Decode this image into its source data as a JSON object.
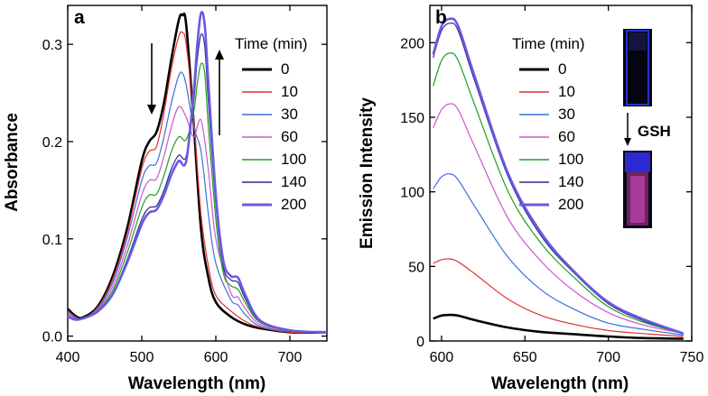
{
  "chart_data": [
    {
      "type": "line",
      "panel_label": "a",
      "xlabel": "Wavelength (nm)",
      "ylabel": "Absorbance",
      "xlim": [
        400,
        750
      ],
      "ylim": [
        -0.005,
        0.34
      ],
      "xticks": [
        "400",
        "500",
        "600",
        "700"
      ],
      "yticks": [
        "0.0",
        "0.1",
        "0.2",
        "0.3"
      ],
      "legend_title": "Time (min)",
      "legend_position": "top-right",
      "annotations": [
        "arrow down near 510 nm (decreasing)",
        "arrow up near 600 nm (increasing)"
      ],
      "series": [
        {
          "name": "0",
          "color": "#000000",
          "bold": true,
          "x": [
            400,
            410,
            420,
            440,
            460,
            480,
            500,
            510,
            520,
            530,
            540,
            550,
            555,
            560,
            570,
            580,
            590,
            600,
            620,
            640,
            660,
            700,
            750
          ],
          "y": [
            0.028,
            0.021,
            0.019,
            0.03,
            0.06,
            0.11,
            0.18,
            0.2,
            0.21,
            0.24,
            0.285,
            0.325,
            0.33,
            0.32,
            0.22,
            0.11,
            0.06,
            0.035,
            0.02,
            0.012,
            0.008,
            0.004,
            0.004
          ]
        },
        {
          "name": "10",
          "color": "#e03030",
          "x": [
            400,
            410,
            420,
            440,
            460,
            480,
            500,
            510,
            520,
            530,
            540,
            550,
            555,
            560,
            570,
            580,
            590,
            600,
            620,
            640,
            660,
            700,
            750
          ],
          "y": [
            0.026,
            0.02,
            0.018,
            0.029,
            0.057,
            0.105,
            0.172,
            0.19,
            0.195,
            0.23,
            0.275,
            0.308,
            0.312,
            0.3,
            0.225,
            0.125,
            0.072,
            0.042,
            0.026,
            0.015,
            0.009,
            0.004,
            0.004
          ]
        },
        {
          "name": "30",
          "color": "#3d6fd6",
          "x": [
            400,
            410,
            420,
            440,
            460,
            480,
            500,
            510,
            520,
            530,
            540,
            550,
            555,
            560,
            570,
            580,
            590,
            600,
            620,
            630,
            640,
            660,
            700,
            750
          ],
          "y": [
            0.024,
            0.019,
            0.018,
            0.028,
            0.054,
            0.1,
            0.16,
            0.175,
            0.178,
            0.205,
            0.24,
            0.268,
            0.27,
            0.258,
            0.215,
            0.19,
            0.125,
            0.075,
            0.038,
            0.032,
            0.022,
            0.01,
            0.005,
            0.004
          ]
        },
        {
          "name": "60",
          "color": "#cc55cc",
          "x": [
            400,
            410,
            420,
            440,
            460,
            480,
            500,
            510,
            520,
            530,
            540,
            550,
            560,
            570,
            580,
            590,
            600,
            620,
            630,
            640,
            660,
            700,
            750
          ],
          "y": [
            0.022,
            0.018,
            0.018,
            0.027,
            0.05,
            0.092,
            0.145,
            0.16,
            0.162,
            0.185,
            0.215,
            0.236,
            0.225,
            0.205,
            0.222,
            0.17,
            0.1,
            0.045,
            0.04,
            0.028,
            0.012,
            0.006,
            0.004
          ]
        },
        {
          "name": "100",
          "color": "#1e9e1e",
          "x": [
            400,
            410,
            420,
            440,
            460,
            480,
            500,
            510,
            520,
            530,
            540,
            550,
            560,
            570,
            575,
            580,
            585,
            590,
            600,
            610,
            620,
            630,
            640,
            660,
            700,
            750
          ],
          "y": [
            0.021,
            0.017,
            0.018,
            0.026,
            0.046,
            0.085,
            0.132,
            0.145,
            0.146,
            0.165,
            0.19,
            0.205,
            0.202,
            0.23,
            0.26,
            0.28,
            0.27,
            0.215,
            0.12,
            0.065,
            0.052,
            0.048,
            0.034,
            0.014,
            0.006,
            0.004
          ]
        },
        {
          "name": "140",
          "color": "#2a2a8e",
          "x": [
            400,
            410,
            420,
            440,
            460,
            480,
            500,
            510,
            520,
            530,
            540,
            550,
            560,
            570,
            575,
            580,
            585,
            590,
            600,
            610,
            620,
            630,
            640,
            660,
            700,
            750
          ],
          "y": [
            0.02,
            0.017,
            0.018,
            0.025,
            0.043,
            0.078,
            0.12,
            0.132,
            0.134,
            0.15,
            0.172,
            0.186,
            0.185,
            0.24,
            0.285,
            0.31,
            0.298,
            0.24,
            0.135,
            0.072,
            0.058,
            0.055,
            0.038,
            0.015,
            0.006,
            0.004
          ]
        },
        {
          "name": "200",
          "color": "#6a5ae0",
          "bold": true,
          "x": [
            400,
            410,
            420,
            440,
            460,
            480,
            500,
            510,
            520,
            530,
            540,
            550,
            560,
            570,
            575,
            580,
            585,
            590,
            600,
            610,
            620,
            630,
            640,
            660,
            700,
            750
          ],
          "y": [
            0.02,
            0.017,
            0.018,
            0.025,
            0.042,
            0.075,
            0.115,
            0.127,
            0.13,
            0.145,
            0.166,
            0.18,
            0.18,
            0.25,
            0.3,
            0.332,
            0.32,
            0.26,
            0.145,
            0.078,
            0.062,
            0.06,
            0.042,
            0.016,
            0.006,
            0.004
          ]
        }
      ]
    },
    {
      "type": "line",
      "panel_label": "b",
      "xlabel": "Wavelength (nm)",
      "ylabel": "Emission Intensity",
      "xlim": [
        593,
        750
      ],
      "ylim": [
        0,
        225
      ],
      "xticks": [
        "600",
        "650",
        "700",
        "750"
      ],
      "yticks": [
        "0",
        "50",
        "100",
        "150",
        "200"
      ],
      "legend_title": "Time (min)",
      "legend_position": "top-right",
      "inset": {
        "label": "GSH",
        "description": "two cuvette photos under UV light, dark before and pink-glowing after GSH"
      },
      "series": [
        {
          "name": "0",
          "color": "#000000",
          "bold": true,
          "x": [
            595,
            600,
            605,
            610,
            620,
            640,
            660,
            680,
            700,
            720,
            745
          ],
          "y": [
            15,
            17,
            17.5,
            17,
            14,
            9,
            6,
            4.5,
            3,
            2,
            1.5
          ]
        },
        {
          "name": "10",
          "color": "#e03030",
          "x": [
            595,
            600,
            605,
            610,
            620,
            640,
            660,
            680,
            700,
            720,
            745
          ],
          "y": [
            52,
            54.5,
            55,
            53,
            45,
            28,
            17,
            11,
            7,
            5,
            3
          ]
        },
        {
          "name": "30",
          "color": "#3d6fd6",
          "x": [
            595,
            600,
            605,
            610,
            620,
            640,
            660,
            680,
            700,
            720,
            745
          ],
          "y": [
            102,
            110,
            112,
            108,
            90,
            56,
            34,
            21,
            12,
            8,
            4
          ]
        },
        {
          "name": "60",
          "color": "#cc55cc",
          "x": [
            595,
            600,
            605,
            610,
            620,
            640,
            660,
            680,
            700,
            720,
            745
          ],
          "y": [
            143,
            155,
            159,
            155,
            130,
            82,
            53,
            33,
            19,
            11,
            5
          ]
        },
        {
          "name": "100",
          "color": "#1e9e1e",
          "x": [
            595,
            600,
            605,
            610,
            620,
            640,
            660,
            680,
            700,
            720,
            745
          ],
          "y": [
            171,
            188,
            193,
            188,
            158,
            100,
            65,
            42,
            23,
            13,
            5
          ]
        },
        {
          "name": "140",
          "color": "#2a2a8e",
          "x": [
            595,
            600,
            605,
            610,
            620,
            640,
            660,
            680,
            700,
            720,
            745
          ],
          "y": [
            190,
            208,
            213,
            208,
            174,
            110,
            70,
            45,
            25,
            14,
            5
          ]
        },
        {
          "name": "200",
          "color": "#6a5ae0",
          "bold": true,
          "x": [
            595,
            600,
            605,
            610,
            620,
            640,
            660,
            680,
            700,
            720,
            745
          ],
          "y": [
            192,
            211,
            216,
            211,
            177,
            112,
            72,
            46,
            26,
            15,
            5
          ]
        }
      ]
    }
  ]
}
